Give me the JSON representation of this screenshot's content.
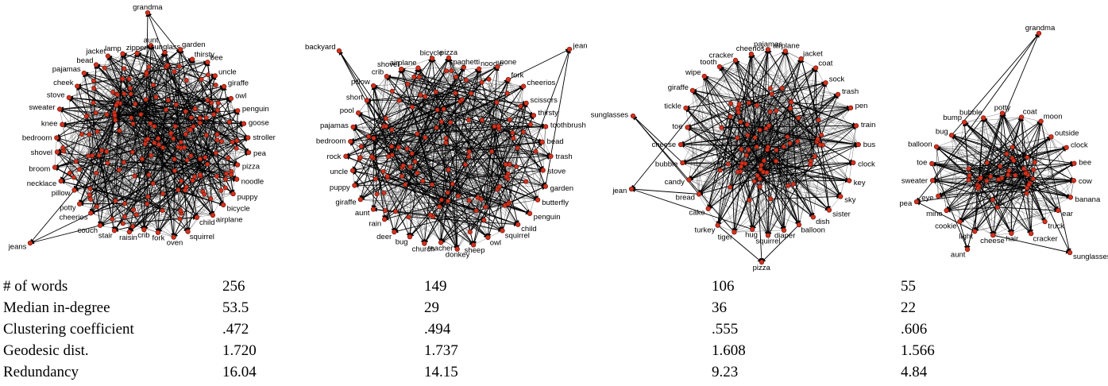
{
  "networks": [
    {
      "labels": [
        "grandma",
        "aunt",
        "sunglass",
        "garden",
        "thirsty",
        "bee",
        "uncle",
        "giraffe",
        "owl",
        "penguin",
        "goose",
        "stroller",
        "pea",
        "pizza",
        "noodle",
        "puppy",
        "bicycle",
        "airplane",
        "child",
        "squirrel",
        "oven",
        "fork",
        "crib",
        "raisin",
        "stair",
        "couch",
        "cheerios",
        "potty",
        "pillow",
        "necklace",
        "broom",
        "shovel",
        "bedroom",
        "knee",
        "sweater",
        "stove",
        "jeans",
        "cheek",
        "pajamas",
        "bead",
        "jacket",
        "lamp",
        "zipper"
      ]
    },
    {
      "labels": [
        "backyard",
        "pizza",
        "spaghetti",
        "noodle",
        "none",
        "fork",
        "cheerios",
        "scissors",
        "jean",
        "thirsty",
        "toothbrush",
        "bead",
        "trash",
        "stove",
        "garden",
        "butterfly",
        "penguin",
        "child",
        "squirrel",
        "owl",
        "sheep",
        "donkey",
        "teacher",
        "church",
        "bug",
        "deer",
        "rain",
        "aunt",
        "giraffe",
        "puppy",
        "uncle",
        "rock",
        "bedroom",
        "pajamas",
        "pool",
        "short",
        "pillow",
        "crib",
        "shovel",
        "airplane",
        "bicycle"
      ]
    },
    {
      "labels": [
        "pajamas",
        "airplane",
        "jacket",
        "coat",
        "sock",
        "trash",
        "pen",
        "train",
        "bus",
        "clock",
        "key",
        "sky",
        "sister",
        "sunglasses",
        "dish",
        "balloon",
        "diaper",
        "squirrel",
        "hug",
        "tiger",
        "turkey",
        "cake",
        "bread",
        "candy",
        "jean",
        "bubble",
        "cheese",
        "toe",
        "tickle",
        "giraffe",
        "wipe",
        "tooth",
        "cracker",
        "cheerios",
        "pizza"
      ]
    },
    {
      "labels": [
        "grandma",
        "potty",
        "coat",
        "moon",
        "outside",
        "clock",
        "bee",
        "cow",
        "banana",
        "ear",
        "truck",
        "cracker",
        "hair",
        "cheese",
        "light",
        "cookie",
        "mine",
        "pea",
        "eye",
        "sweater",
        "toe",
        "balloon",
        "bug",
        "bump",
        "bubble",
        "aunt",
        "sunglasses"
      ]
    }
  ],
  "stats": {
    "rows": [
      {
        "label": "# of words",
        "values": [
          "256",
          "149",
          "106",
          "55"
        ]
      },
      {
        "label": "Median in-degree",
        "values": [
          "53.5",
          "29",
          "36",
          "22"
        ]
      },
      {
        "label": "Clustering coefficient",
        "values": [
          ".472",
          ".494",
          ".555",
          ".606"
        ]
      },
      {
        "label": "Geodesic dist.",
        "values": [
          "1.720",
          "1.737",
          "1.608",
          "1.566"
        ]
      },
      {
        "label": "Redundancy",
        "values": [
          "16.04",
          "14.15",
          "9.23",
          "4.84"
        ]
      }
    ]
  }
}
